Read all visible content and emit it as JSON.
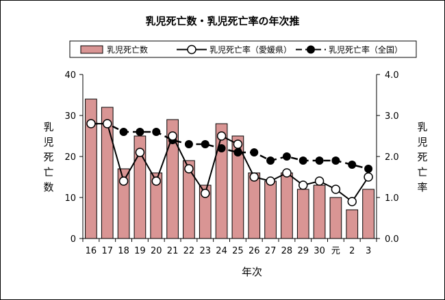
{
  "chart_data": {
    "type": "bar",
    "title": "乳児死亡数・乳児死亡率の年次推",
    "xlabel": "年次",
    "ylabel_left": "乳児死亡数",
    "ylabel_right": "乳児死亡率",
    "categories": [
      "16",
      "17",
      "18",
      "19",
      "20",
      "21",
      "22",
      "23",
      "24",
      "25",
      "26",
      "27",
      "28",
      "29",
      "30",
      "元",
      "2",
      "3"
    ],
    "ylim_left": [
      0,
      40
    ],
    "yticks_left": [
      "0",
      "10",
      "20",
      "30",
      "40"
    ],
    "ylim_right": [
      0,
      4
    ],
    "yticks_right": [
      "0.0",
      "1.0",
      "2.0",
      "3.0",
      "4.0"
    ],
    "grid": false,
    "legend_position": "top",
    "series": [
      {
        "name": "乳児死亡数",
        "type": "bar",
        "axis": "left",
        "color": "#d99594",
        "values": [
          34,
          32,
          17,
          25,
          16,
          29,
          19,
          13,
          28,
          25,
          16,
          14,
          16,
          12,
          13,
          10,
          7,
          12
        ]
      },
      {
        "name": "乳児死亡率（愛媛県）",
        "type": "line",
        "axis": "right",
        "color": "#000000",
        "marker": "open-circle",
        "values": [
          2.8,
          2.8,
          1.4,
          2.1,
          1.4,
          2.5,
          1.7,
          1.1,
          2.5,
          2.3,
          1.5,
          1.4,
          1.6,
          1.3,
          1.4,
          1.2,
          0.9,
          1.5
        ]
      },
      {
        "name": "乳児死亡率（全国）",
        "type": "line",
        "axis": "right",
        "color": "#000000",
        "marker": "filled-circle",
        "dashed": true,
        "values": [
          2.8,
          2.8,
          2.6,
          2.6,
          2.6,
          2.4,
          2.3,
          2.3,
          2.2,
          2.1,
          2.1,
          1.9,
          2.0,
          1.9,
          1.9,
          1.9,
          1.8,
          1.7
        ]
      }
    ]
  }
}
